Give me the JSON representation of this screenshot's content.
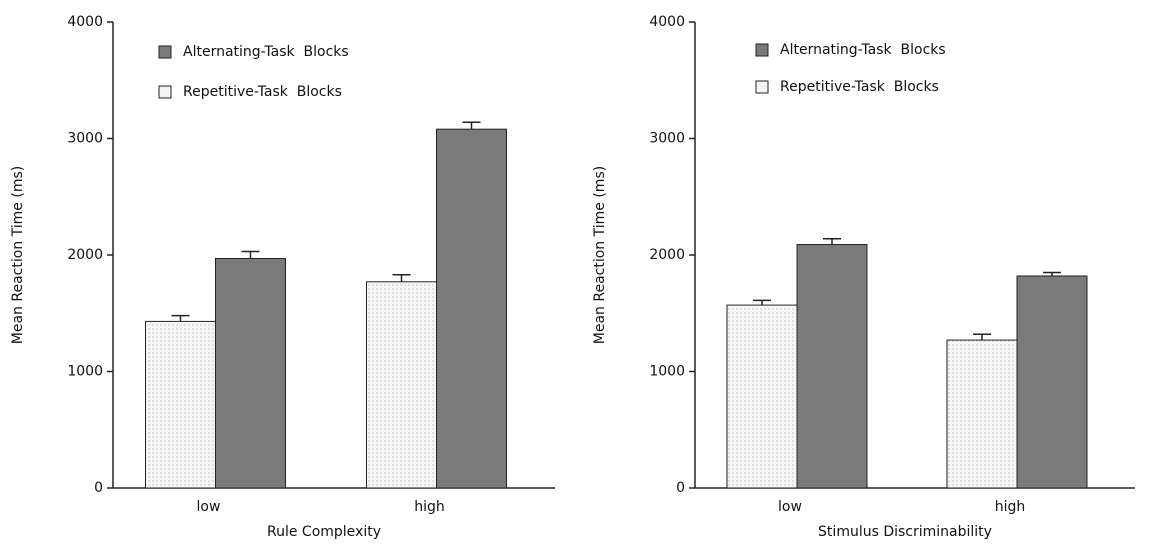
{
  "chart_data": [
    {
      "type": "bar",
      "xlabel": "Rule  Complexity",
      "ylabel": "Mean Reaction Time (ms)",
      "categories": [
        "low",
        "high"
      ],
      "series": [
        {
          "name": "Alternating-Task  Blocks",
          "color": "#7a7a7a",
          "values": [
            1970,
            3080
          ],
          "errors": [
            60,
            60
          ]
        },
        {
          "name": "Repetitive-Task  Blocks",
          "color": "#f3f3f3",
          "values": [
            1430,
            1770
          ],
          "errors": [
            50,
            60
          ]
        }
      ],
      "ylim": [
        0,
        4000
      ],
      "yticks": [
        0,
        1000,
        2000,
        3000,
        4000
      ]
    },
    {
      "type": "bar",
      "xlabel": "Stimulus   Discriminability",
      "ylabel": "Mean Reaction Time (ms)",
      "categories": [
        "low",
        "high"
      ],
      "series": [
        {
          "name": "Alternating-Task  Blocks",
          "color": "#7a7a7a",
          "values": [
            2090,
            1820
          ],
          "errors": [
            50,
            30
          ]
        },
        {
          "name": "Repetitive-Task  Blocks",
          "color": "#f3f3f3",
          "values": [
            1570,
            1270
          ],
          "errors": [
            40,
            50
          ]
        }
      ],
      "ylim": [
        0,
        4000
      ],
      "yticks": [
        0,
        1000,
        2000,
        3000,
        4000
      ]
    }
  ]
}
